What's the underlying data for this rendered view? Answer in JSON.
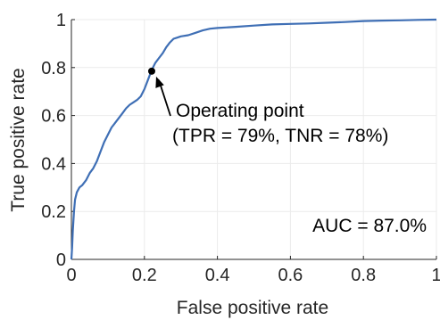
{
  "chart_data": {
    "type": "line",
    "xlabel": "False positive rate",
    "ylabel": "True positive rate",
    "xlim": [
      0,
      1
    ],
    "ylim": [
      0,
      1
    ],
    "x_ticks": [
      0,
      0.2,
      0.4,
      0.6,
      0.8,
      1
    ],
    "y_ticks": [
      0,
      0.2,
      0.4,
      0.6,
      0.8,
      1
    ],
    "x_tick_labels": [
      "0",
      "0.2",
      "0.4",
      "0.6",
      "0.8",
      "1"
    ],
    "y_tick_labels": [
      "0",
      "0.2",
      "0.4",
      "0.6",
      "0.8",
      "1"
    ],
    "grid": true,
    "series": [
      {
        "color": "#3f6fb5",
        "points": [
          [
            0,
            0
          ],
          [
            0.002,
            0.05
          ],
          [
            0.004,
            0.12
          ],
          [
            0.007,
            0.2
          ],
          [
            0.01,
            0.25
          ],
          [
            0.015,
            0.28
          ],
          [
            0.022,
            0.3
          ],
          [
            0.03,
            0.31
          ],
          [
            0.04,
            0.33
          ],
          [
            0.05,
            0.36
          ],
          [
            0.06,
            0.38
          ],
          [
            0.07,
            0.41
          ],
          [
            0.08,
            0.45
          ],
          [
            0.09,
            0.49
          ],
          [
            0.1,
            0.52
          ],
          [
            0.11,
            0.55
          ],
          [
            0.12,
            0.57
          ],
          [
            0.13,
            0.59
          ],
          [
            0.14,
            0.61
          ],
          [
            0.15,
            0.63
          ],
          [
            0.16,
            0.645
          ],
          [
            0.17,
            0.655
          ],
          [
            0.18,
            0.665
          ],
          [
            0.19,
            0.68
          ],
          [
            0.2,
            0.71
          ],
          [
            0.21,
            0.75
          ],
          [
            0.22,
            0.79
          ],
          [
            0.23,
            0.82
          ],
          [
            0.24,
            0.84
          ],
          [
            0.25,
            0.86
          ],
          [
            0.26,
            0.885
          ],
          [
            0.27,
            0.905
          ],
          [
            0.28,
            0.92
          ],
          [
            0.29,
            0.925
          ],
          [
            0.3,
            0.93
          ],
          [
            0.32,
            0.935
          ],
          [
            0.34,
            0.945
          ],
          [
            0.36,
            0.955
          ],
          [
            0.38,
            0.962
          ],
          [
            0.4,
            0.965
          ],
          [
            0.45,
            0.97
          ],
          [
            0.5,
            0.975
          ],
          [
            0.55,
            0.98
          ],
          [
            0.6,
            0.982
          ],
          [
            0.65,
            0.984
          ],
          [
            0.7,
            0.987
          ],
          [
            0.75,
            0.99
          ],
          [
            0.8,
            0.994
          ],
          [
            0.85,
            0.996
          ],
          [
            0.9,
            0.997
          ],
          [
            0.95,
            0.999
          ],
          [
            1,
            1
          ]
        ]
      }
    ],
    "operating_point": {
      "x": 0.22,
      "y": 0.785
    },
    "annotations": {
      "operating_point_line1": "Operating point",
      "operating_point_line2": "(TPR = 79%, TNR = 78%)",
      "auc": "AUC = 87.0%"
    }
  }
}
